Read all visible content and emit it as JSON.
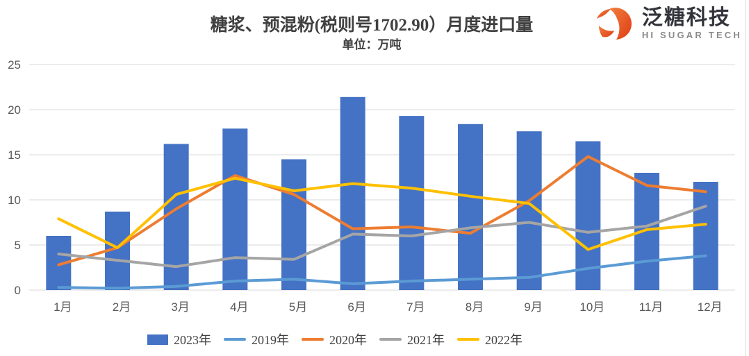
{
  "logo": {
    "name_cn": "泛糖科技",
    "name_en": "HI SUGAR TECH",
    "mark_color": "#e44a1c",
    "mark_color_light": "#f0803f",
    "text_color": "#33343b",
    "subtext_color": "#8a8a8a"
  },
  "chart_data": {
    "type": "bar",
    "combo": "bar+line",
    "title": "糖浆、预混粉(税则号1702.90）月度进口量",
    "subtitle_unit": "单位：万吨",
    "categories": [
      "1月",
      "2月",
      "3月",
      "4月",
      "5月",
      "6月",
      "7月",
      "8月",
      "9月",
      "10月",
      "11月",
      "12月"
    ],
    "ylim": [
      0,
      25
    ],
    "yticks": [
      0,
      5,
      10,
      15,
      20,
      25
    ],
    "grid": true,
    "grid_color": "#d9d9d9",
    "axis_label_color": "#595959",
    "legend_position": "bottom",
    "bar_series": {
      "name": "2023年",
      "color": "#4472c4",
      "values": [
        6.0,
        8.7,
        16.2,
        17.9,
        14.5,
        21.4,
        19.3,
        18.4,
        17.6,
        16.5,
        13.0,
        12.0
      ]
    },
    "line_series": [
      {
        "name": "2019年",
        "color": "#5b9bd5",
        "values": [
          0.3,
          0.2,
          0.4,
          1.0,
          1.2,
          0.7,
          1.0,
          1.2,
          1.4,
          2.4,
          3.2,
          3.8
        ]
      },
      {
        "name": "2020年",
        "color": "#ed7d31",
        "values": [
          2.8,
          4.7,
          9.0,
          12.7,
          10.6,
          6.8,
          7.0,
          6.3,
          9.9,
          14.8,
          11.6,
          10.9
        ]
      },
      {
        "name": "2021年",
        "color": "#a5a5a5",
        "values": [
          4.0,
          3.3,
          2.6,
          3.6,
          3.4,
          6.2,
          6.0,
          6.9,
          7.5,
          6.4,
          7.1,
          9.3
        ]
      },
      {
        "name": "2022年",
        "color": "#ffc000",
        "values": [
          7.9,
          4.7,
          10.6,
          12.4,
          11.0,
          11.8,
          11.3,
          10.4,
          9.6,
          4.5,
          6.7,
          7.3
        ]
      }
    ]
  }
}
